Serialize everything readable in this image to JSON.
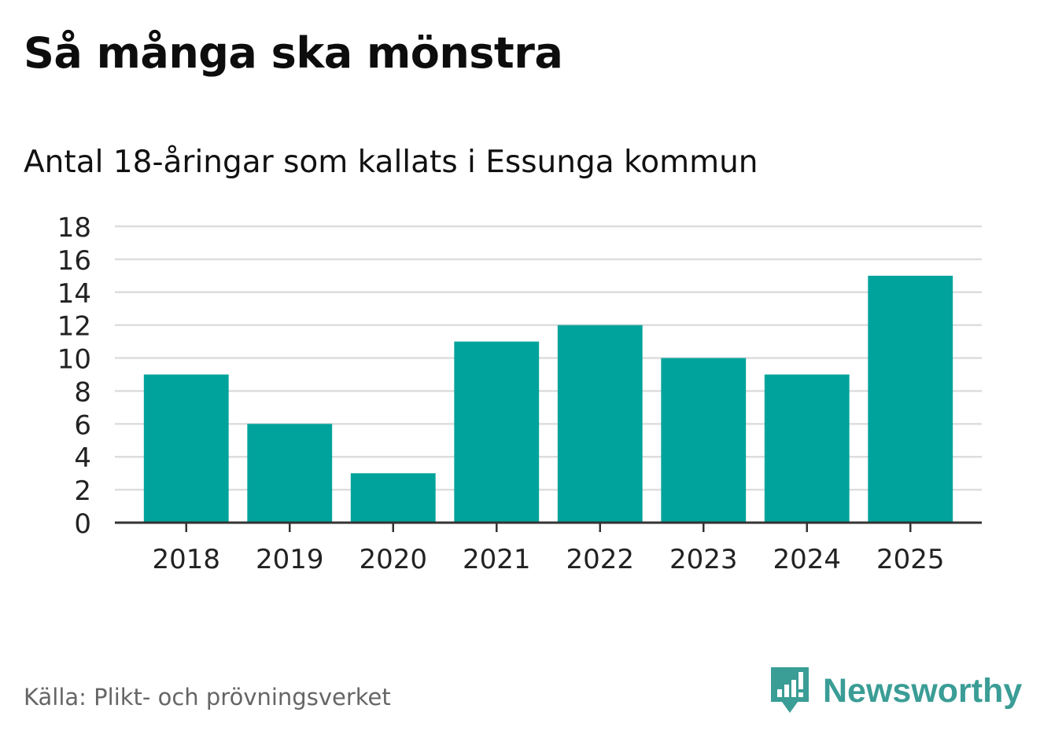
{
  "title": "Så många ska mönstra",
  "subtitle": "Antal 18-åringar som kallats i Essunga kommun",
  "source": "Källa: Plikt- och prövningsverket",
  "brand": {
    "name": "Newsworthy",
    "icon": "newsworthy-logo-icon"
  },
  "colors": {
    "bar": "#00a39b",
    "grid": "#dddddd",
    "axis": "#333333",
    "brand": "#3a9d96"
  },
  "chart_data": {
    "type": "bar",
    "title": "Så många ska mönstra",
    "subtitle": "Antal 18-åringar som kallats i Essunga kommun",
    "categories": [
      "2018",
      "2019",
      "2020",
      "2021",
      "2022",
      "2023",
      "2024",
      "2025"
    ],
    "values": [
      9,
      6,
      3,
      11,
      12,
      10,
      9,
      15
    ],
    "xlabel": "",
    "ylabel": "",
    "ylim": [
      0,
      18
    ],
    "yticks": [
      0,
      2,
      4,
      6,
      8,
      10,
      12,
      14,
      16,
      18
    ],
    "grid": true,
    "legend": "none"
  }
}
